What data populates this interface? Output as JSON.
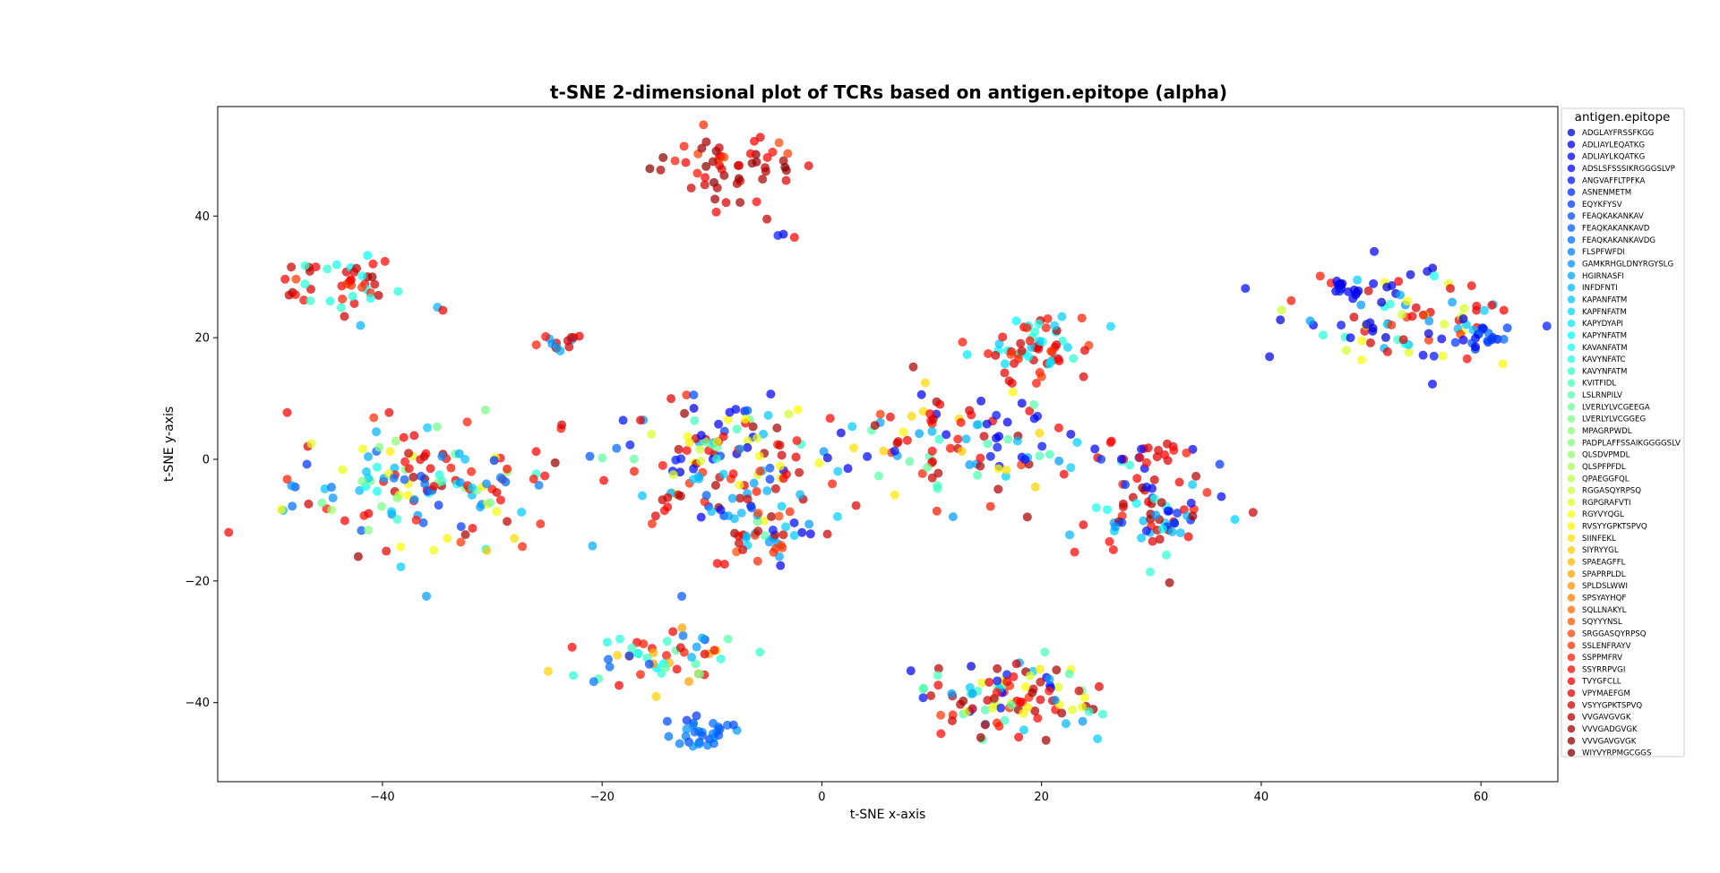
{
  "chart_data": {
    "type": "scatter",
    "title": "t-SNE 2-dimensional plot of TCRs based on antigen.epitope (alpha)",
    "xlabel": "t-SNE x-axis",
    "ylabel": "t-SNE y-axis",
    "xlim": [
      -55,
      67
    ],
    "ylim": [
      -53,
      58
    ],
    "xticks": [
      -40,
      -20,
      0,
      20,
      40,
      60
    ],
    "yticks": [
      -40,
      -20,
      0,
      20,
      40
    ],
    "grid": false,
    "legend": {
      "title": "antigen.epitope",
      "placement": "outside-right",
      "entries": [
        "ADGLAYFRSSFKGG",
        "ADLIAYLEQATKG",
        "ADLIAYLKQATKG",
        "ADSLSFSSSIKRGGGSLVP",
        "ANGVAFFLTPFKA",
        "ASNENMETM",
        "EQYKFYSV",
        "FEAQKAKANKAV",
        "FEAQKAKANKAVD",
        "FEAQKAKANKAVDG",
        "FLSPFWFDI",
        "GAMKRHGLDNYRGYSLG",
        "HGIRNASFI",
        "INFDFNTI",
        "KAPANFATM",
        "KAPFNFATM",
        "KAPYDYAPI",
        "KAPYNFATM",
        "KAVANFATM",
        "KAVYNFATC",
        "KAVYNFATM",
        "KVITFIDL",
        "LSLRNPILV",
        "LVERLYLVCGEEGA",
        "LVERLYLVCGGEG",
        "MPAGRPWDL",
        "PADPLAFFSSAIKGGGGSLV",
        "QLSDVPMDL",
        "QLSPFPFDL",
        "QPAEGGFQL",
        "RGGASQYRPSQ",
        "RGPGRAFVTI",
        "RGYVYQGL",
        "RVSYYGPKTSPVQ",
        "SIINFEKL",
        "SIYRYYGL",
        "SPAEAGFFL",
        "SPAPRPLDL",
        "SPLDSLWWI",
        "SPSYAYHQF",
        "SQLLNAKYL",
        "SQYYYNSL",
        "SRGGASQYRPSQ",
        "SSLENFRAYV",
        "SSPPMFRV",
        "SSYRRPVGI",
        "TVYGFCLL",
        "VPYMAEFGM",
        "VSYYGPKTSPVQ",
        "VVGAVGVGK",
        "VVVGADGVGK",
        "VVVGAVGVGK",
        "WIYVYRPMGCGGS"
      ]
    },
    "palette": "jet",
    "clusters": [
      {
        "center": [
          -8.5,
          48
        ],
        "spread": [
          4.5,
          3.5
        ],
        "n": 55,
        "colors": [
          0.93,
          0.88,
          0.97,
          0.82
        ],
        "extra": [
          [
            -3.5,
            37,
            0.12
          ],
          [
            -4,
            36.8,
            0.15
          ],
          [
            -2.5,
            36.5,
            0.88
          ],
          [
            -5,
            39.5,
            0.94
          ]
        ]
      },
      {
        "center": [
          -44,
          29
        ],
        "spread": [
          3.5,
          3
        ],
        "n": 45,
        "colors": [
          0.9,
          0.95,
          0.85,
          0.4
        ],
        "extra": [
          [
            -35,
            25,
            0.3
          ],
          [
            -42,
            22,
            0.3
          ],
          [
            -34.5,
            24.5,
            0.9
          ],
          [
            -48.5,
            27,
            0.93
          ]
        ]
      },
      {
        "center": [
          -36,
          -4
        ],
        "spread": [
          7.5,
          6.5
        ],
        "n": 150,
        "colors": [
          0.9,
          0.85,
          0.3,
          0.4,
          0.5,
          0.95,
          0.88,
          0.25,
          0.2,
          0.62
        ],
        "extra": [
          [
            -36,
            -22.5,
            0.28
          ],
          [
            -30.5,
            -15,
            0.68
          ],
          [
            -28,
            -13,
            0.66
          ]
        ]
      },
      {
        "center": [
          -24,
          19
        ],
        "spread": [
          1.5,
          1
        ],
        "n": 15,
        "colors": [
          0.88,
          0.9,
          0.3
        ]
      },
      {
        "center": [
          -10,
          0
        ],
        "spread": [
          6,
          7
        ],
        "n": 140,
        "colors": [
          0.9,
          0.95,
          0.12,
          0.2,
          0.3,
          0.85,
          0.45,
          0.6
        ]
      },
      {
        "center": [
          -5,
          -12
        ],
        "spread": [
          4,
          4
        ],
        "n": 45,
        "colors": [
          0.9,
          0.12,
          0.82,
          0.95,
          0.3
        ]
      },
      {
        "center": [
          -15,
          -32
        ],
        "spread": [
          5,
          3
        ],
        "n": 55,
        "colors": [
          0.4,
          0.45,
          0.3,
          0.88,
          0.22,
          0.7
        ]
      },
      {
        "center": [
          -11,
          -45
        ],
        "spread": [
          2,
          1.5
        ],
        "n": 30,
        "colors": [
          0.22,
          0.25,
          0.2
        ]
      },
      {
        "center": [
          17,
          -39
        ],
        "spread": [
          5,
          4
        ],
        "n": 110,
        "colors": [
          0.9,
          0.85,
          0.95,
          0.45,
          0.62,
          0.12,
          0.3
        ]
      },
      {
        "center": [
          20,
          18
        ],
        "spread": [
          3,
          4
        ],
        "n": 70,
        "colors": [
          0.88,
          0.85,
          0.92,
          0.4,
          0.35
        ]
      },
      {
        "center": [
          12,
          2
        ],
        "spread": [
          8,
          6
        ],
        "n": 120,
        "colors": [
          0.85,
          0.9,
          0.12,
          0.3,
          0.45,
          0.65,
          0.95
        ]
      },
      {
        "center": [
          31,
          -10
        ],
        "spread": [
          4,
          5
        ],
        "n": 75,
        "colors": [
          0.9,
          0.88,
          0.95,
          0.15,
          0.3,
          0.4
        ]
      },
      {
        "center": [
          29,
          1
        ],
        "spread": [
          2,
          1
        ],
        "n": 18,
        "colors": [
          0.88,
          0.9,
          0.15
        ]
      },
      {
        "center": [
          53,
          23
        ],
        "spread": [
          6,
          5
        ],
        "n": 95,
        "colors": [
          0.1,
          0.12,
          0.9,
          0.4,
          0.3,
          0.85,
          0.6
        ]
      },
      {
        "center": [
          60,
          20
        ],
        "spread": [
          1.5,
          1
        ],
        "n": 20,
        "colors": [
          0.15,
          0.2,
          0.1
        ]
      },
      {
        "center": [
          47.5,
          28.5
        ],
        "spread": [
          1,
          1
        ],
        "n": 15,
        "colors": [
          0.1,
          0.12
        ]
      }
    ]
  }
}
